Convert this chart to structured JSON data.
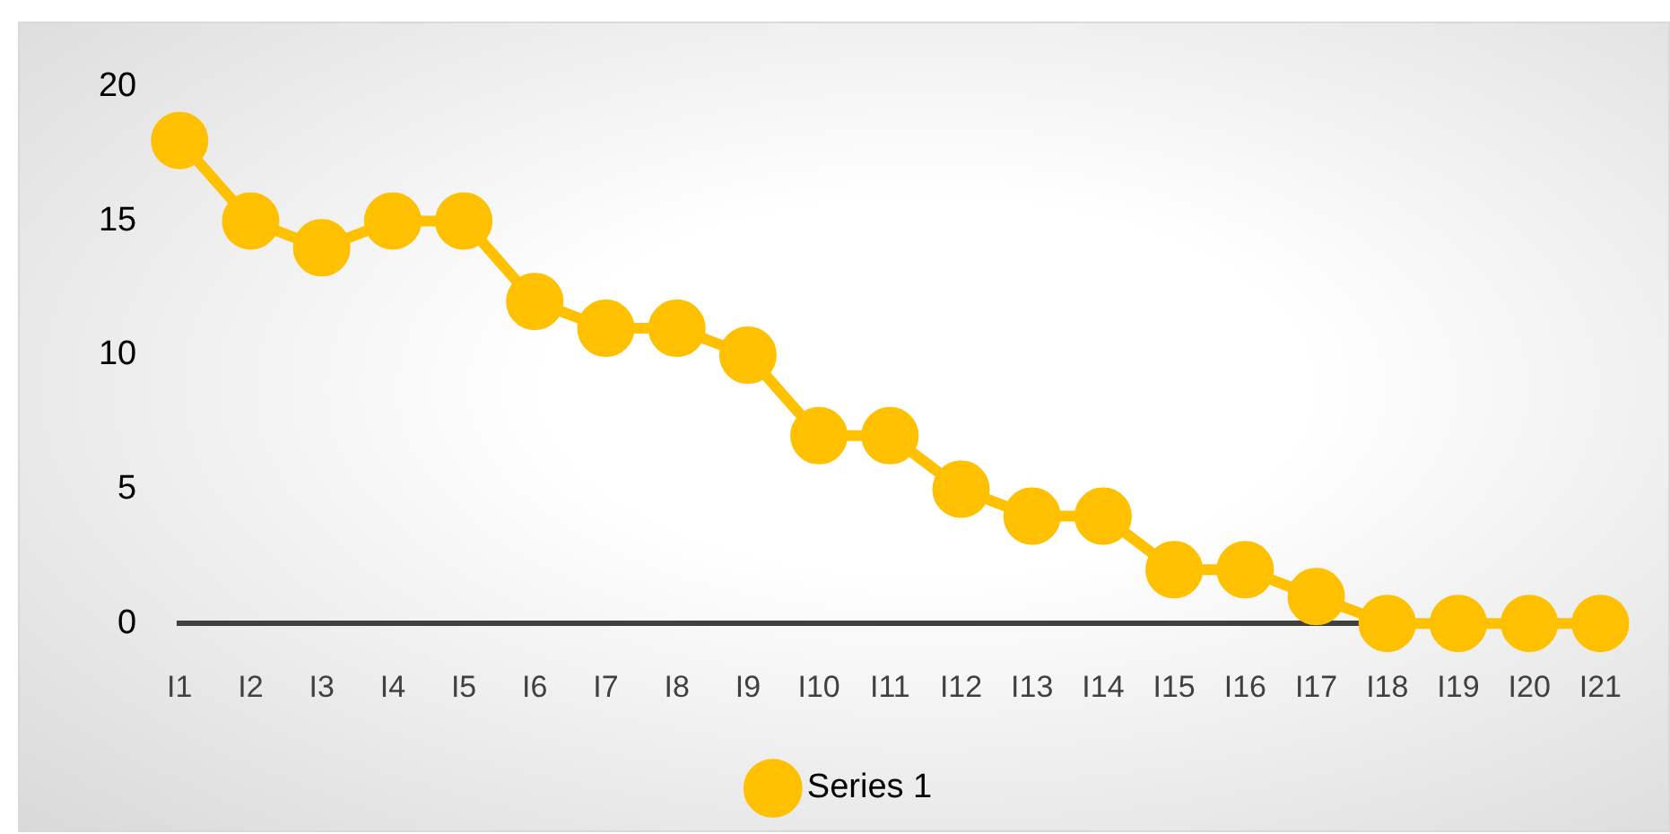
{
  "chart_data": {
    "type": "line",
    "categories": [
      "I1",
      "I2",
      "I3",
      "I4",
      "I5",
      "I6",
      "I7",
      "I8",
      "I9",
      "I10",
      "I11",
      "I12",
      "I13",
      "I14",
      "I15",
      "I16",
      "I17",
      "I18",
      "I19",
      "I20",
      "I21"
    ],
    "series": [
      {
        "name": "Series 1",
        "color": "#ffc000",
        "values": [
          18,
          15,
          14,
          15,
          15,
          12,
          11,
          11,
          10,
          7,
          7,
          5,
          4,
          4,
          2,
          2,
          1,
          0,
          0,
          0,
          0
        ]
      }
    ],
    "ylim": [
      0,
      20
    ],
    "yticks": [
      0,
      5,
      10,
      15,
      20
    ],
    "grid": false,
    "legend": "bottom",
    "marker": "circle",
    "line_style": "solid"
  }
}
